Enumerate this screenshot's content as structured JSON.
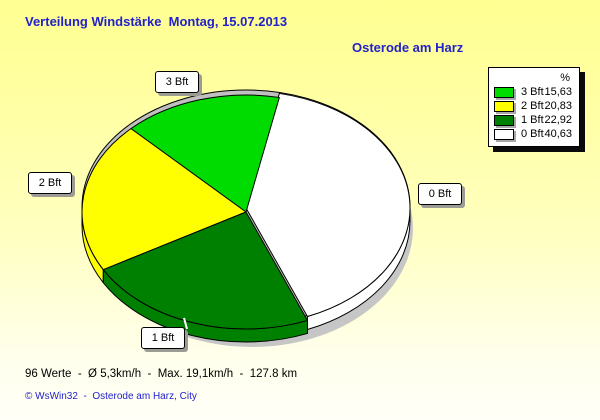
{
  "header": {
    "title": "Verteilung Windstärke  Montag, 15.07.2013",
    "station": "Osterode am Harz",
    "title_color": "#2222CC"
  },
  "chart_data": {
    "type": "pie",
    "style": "3d",
    "title": "Verteilung Windstärke Montag, 15.07.2013",
    "subtitle": "Osterode am Harz",
    "value_unit": "%",
    "start_angle_deg": 292,
    "direction": "ccw",
    "legend_position": "top-right",
    "slices": [
      {
        "label": "0 Bft",
        "value": 40.63,
        "value_text": "40,63",
        "color": "#FFFFFF"
      },
      {
        "label": "3 Bft",
        "value": 15.63,
        "value_text": "15,63",
        "color": "#00DC00"
      },
      {
        "label": "2 Bft",
        "value": 20.83,
        "value_text": "20,83",
        "color": "#FFFF00"
      },
      {
        "label": "1 Bft",
        "value": 22.92,
        "value_text": "22,92",
        "color": "#008000"
      }
    ]
  },
  "legend": {
    "header": "%",
    "items": [
      {
        "label": "3 Bft",
        "value_text": "15,63",
        "color": "#00DC00"
      },
      {
        "label": "2 Bft",
        "value_text": "20,83",
        "color": "#FFFF00"
      },
      {
        "label": "1 Bft",
        "value_text": "22,92",
        "color": "#008000"
      },
      {
        "label": "0 Bft",
        "value_text": "40,63",
        "color": "#FFFFFF"
      }
    ]
  },
  "footer": {
    "stats": "96 Werte  -  Ø 5,3km/h  -  Max. 19,1km/h  -  127.8 km",
    "copyright": "© WsWin32  -  Osterode am Harz, City"
  }
}
